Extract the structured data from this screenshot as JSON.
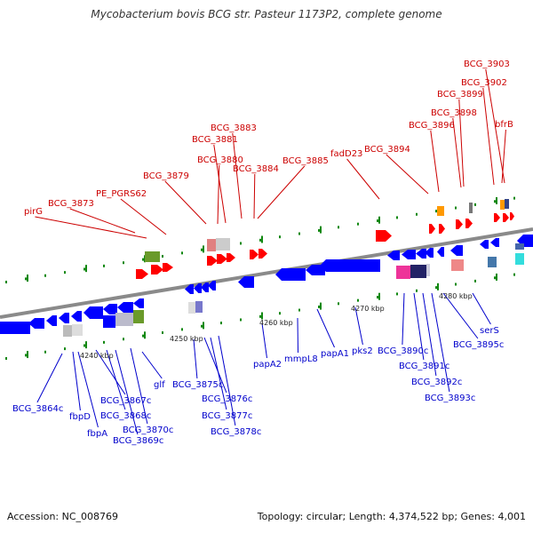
{
  "header": {
    "title": "Mycobacterium bovis BCG str. Pasteur 1173P2, complete genome"
  },
  "footer": {
    "accession_label": "Accession:",
    "accession": "NC_008769",
    "topology_label": "Topology:",
    "topology": "circular",
    "length_label": "Length:",
    "length": "4,374,522 bp",
    "genes_label": "Genes:",
    "genes": "4,001"
  },
  "colors": {
    "forward_gene": "#ff0000",
    "reverse_gene": "#0000ff",
    "forward_label": "#cc0000",
    "reverse_label": "#0000cc",
    "backbone": "#888888",
    "tick": "#118811"
  },
  "scale_ticks": [
    "4240 kbp",
    "4250 kbp",
    "4260 kbp",
    "4270 kbp",
    "4280 kbp"
  ],
  "forward_genes": [
    "pirG",
    "BCG_3873",
    "PE_PGRS62",
    "BCG_3879",
    "BCG_3880",
    "BCG_3881",
    "BCG_3883",
    "BCG_3884",
    "BCG_3885",
    "fadD23",
    "BCG_3894",
    "BCG_3896",
    "BCG_3898",
    "BCG_3899",
    "BCG_3902",
    "BCG_3903",
    "bfrB"
  ],
  "reverse_genes": [
    "BCG_3864c",
    "fbpD",
    "fbpA",
    "BCG_3867c",
    "BCG_3868c",
    "BCG_3869c",
    "BCG_3870c",
    "glf",
    "BCG_3875c",
    "BCG_3876c",
    "BCG_3877c",
    "BCG_3878c",
    "papA2",
    "mmpL8",
    "papA1",
    "pks2",
    "BCG_3890c",
    "BCG_3891c",
    "BCG_3892c",
    "BCG_3893c",
    "BCG_3895c",
    "serS"
  ]
}
